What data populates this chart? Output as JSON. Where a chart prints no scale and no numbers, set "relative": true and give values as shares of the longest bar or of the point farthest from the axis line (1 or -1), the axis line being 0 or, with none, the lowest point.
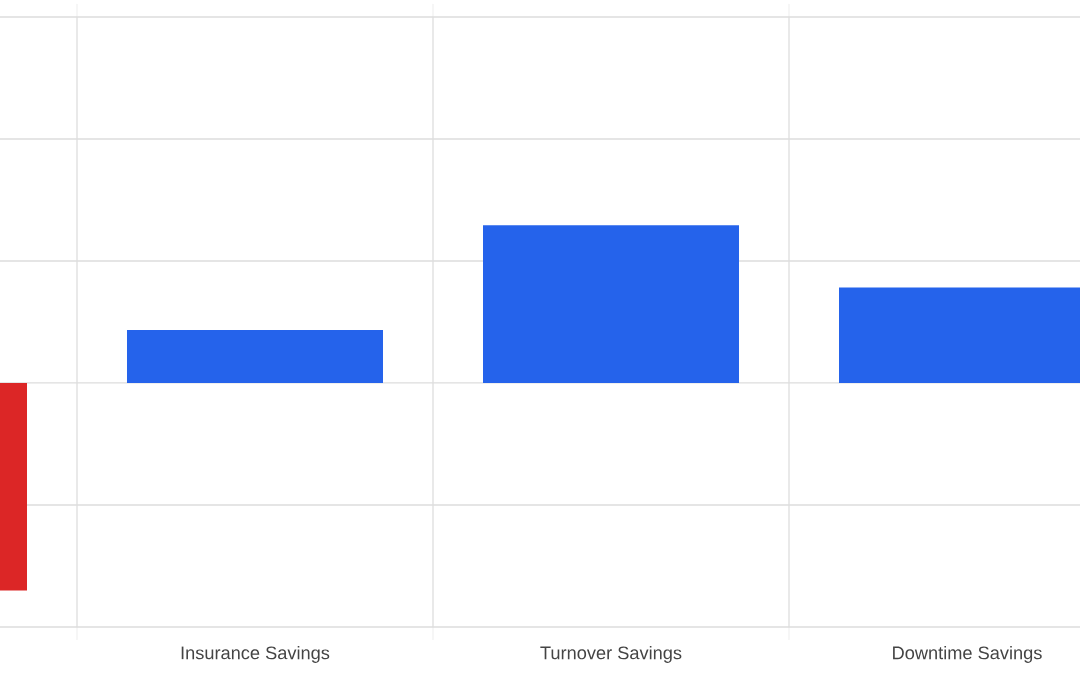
{
  "chart_data": {
    "type": "bar",
    "relative": true,
    "grid": true,
    "categories": [
      null,
      "Insurance Savings",
      "Turnover Savings",
      "Downtime Savings"
    ],
    "values": [
      -1,
      0.255,
      0.76,
      0.46
    ],
    "colors": [
      "#dc2626",
      "#2563eb",
      "#2563eb",
      "#2563eb"
    ]
  }
}
